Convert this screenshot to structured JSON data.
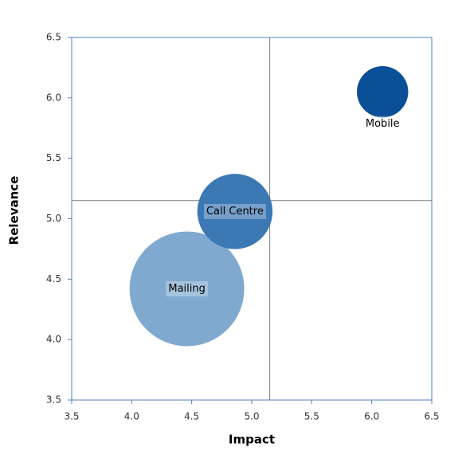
{
  "chart_data": {
    "type": "bubble",
    "x_label": "Impact",
    "y_label": "Relevance",
    "xlim": [
      3.5,
      6.5
    ],
    "xticks": [
      3.5,
      {
        "value": 4,
        "label": "4.0"
      },
      4.5,
      {
        "value": 5,
        "label": "5.0"
      },
      5.5,
      {
        "value": 6,
        "label": "6.0"
      },
      6.5
    ],
    "ylim": [
      3.5,
      6.5
    ],
    "yticks": [
      3.5,
      {
        "value": 4,
        "label": "4.0"
      },
      4.5,
      {
        "value": 5,
        "label": "5.0"
      },
      5.5,
      {
        "value": 6,
        "label": "6.0"
      },
      6.5
    ],
    "reference_x": 5.15,
    "reference_y": 5.15,
    "series": [
      {
        "name": "Mobile",
        "color": "#0b4f97",
        "x": [
          6.09
        ],
        "values": [
          6.05
        ],
        "sizes": [
          20
        ],
        "label_position": "below"
      },
      {
        "name": "Call Centre",
        "color": "#3b78b4",
        "x": [
          4.86
        ],
        "values": [
          5.06
        ],
        "sizes": [
          43
        ],
        "label_position": "center"
      },
      {
        "name": "Mailing",
        "color": "#80a9cf",
        "x": [
          4.46
        ],
        "values": [
          4.42
        ],
        "sizes": [
          100
        ],
        "label_position": "center"
      }
    ]
  }
}
